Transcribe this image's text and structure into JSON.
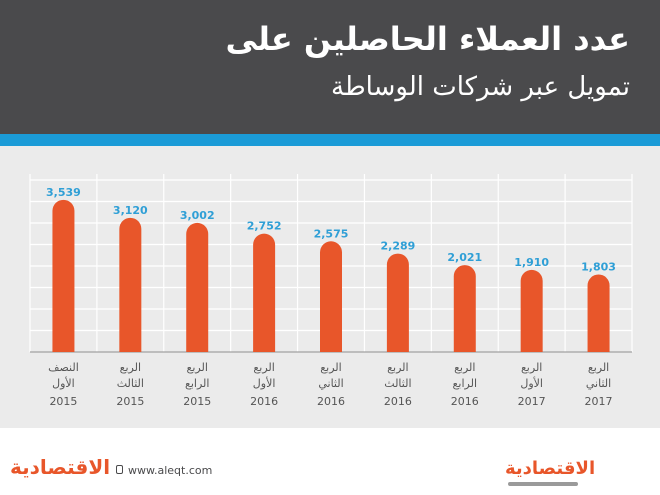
{
  "header": {
    "title_line1": "عدد العملاء الحاصلين على",
    "title_line2": "تمويل عبر شركات الوساطة"
  },
  "footer": {
    "url": "www.aleqt.com",
    "logo_left": "الاقتصادية",
    "logo_right": "الاقتصادية"
  },
  "colors": {
    "header_bg": "#4a4a4c",
    "accent": "#1b9bd7",
    "bar": "#e8562a",
    "value_label": "#2f9fd6",
    "plot_bg": "#ebebeb",
    "grid": "#ffffff"
  },
  "chart_data": {
    "type": "bar",
    "categories": [
      {
        "line1": "النصف",
        "line2": "الأول",
        "year": "2015"
      },
      {
        "line1": "الربع",
        "line2": "الثالث",
        "year": "2015"
      },
      {
        "line1": "الربع",
        "line2": "الرابع",
        "year": "2015"
      },
      {
        "line1": "الربع",
        "line2": "الأول",
        "year": "2016"
      },
      {
        "line1": "الربع",
        "line2": "الثاني",
        "year": "2016"
      },
      {
        "line1": "الربع",
        "line2": "الثالث",
        "year": "2016"
      },
      {
        "line1": "الربع",
        "line2": "الرابع",
        "year": "2016"
      },
      {
        "line1": "الربع",
        "line2": "الأول",
        "year": "2017"
      },
      {
        "line1": "الربع",
        "line2": "الثاني",
        "year": "2017"
      }
    ],
    "values": [
      3539,
      3120,
      3002,
      2752,
      2575,
      2289,
      2021,
      1910,
      1803
    ],
    "value_labels": [
      "3,539",
      "3,120",
      "3,002",
      "2,752",
      "2,575",
      "2,289",
      "2,021",
      "1,910",
      "1,803"
    ],
    "ylim": [
      0,
      4000
    ],
    "grid": true,
    "legend": false
  }
}
